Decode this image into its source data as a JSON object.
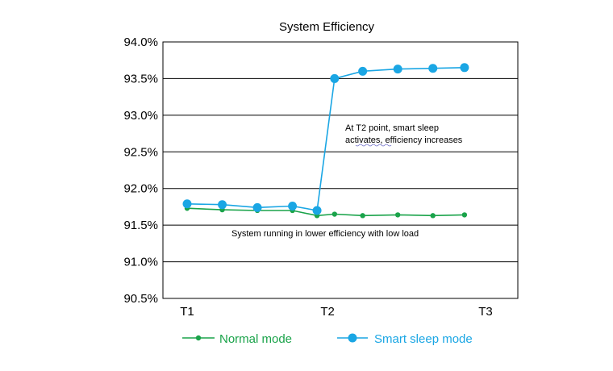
{
  "chart_data": {
    "type": "line",
    "title": "System  Efficiency",
    "xlabel": "",
    "ylabel": "",
    "ylim": [
      90.5,
      94.0
    ],
    "y_ticks": [
      "94.0%",
      "93.5%",
      "93.0%",
      "92.5%",
      "92.0%",
      "91.5%",
      "91.0%",
      "90.5%"
    ],
    "y_tick_values": [
      94.0,
      93.5,
      93.0,
      92.5,
      92.0,
      91.5,
      91.0,
      90.5
    ],
    "x_tick_labels": [
      {
        "label": "T1",
        "x": 0
      },
      {
        "label": "T2",
        "x": 4
      },
      {
        "label": "T3",
        "x": 8.5
      }
    ],
    "xlim": [
      0,
      8.5
    ],
    "grid": true,
    "legend_position": "bottom",
    "series": [
      {
        "name": "Normal mode",
        "color": "#1aa34a",
        "x": [
          0,
          1,
          2,
          3,
          3.7,
          4.2,
          5,
          6,
          7,
          7.9
        ],
        "values": [
          91.73,
          91.71,
          91.7,
          91.7,
          91.63,
          91.65,
          91.63,
          91.64,
          91.63,
          91.64
        ]
      },
      {
        "name": "Smart sleep mode",
        "color": "#1aa6e4",
        "x": [
          0,
          1,
          2,
          3,
          3.7,
          4.2,
          5,
          6,
          7,
          7.9
        ],
        "values": [
          91.79,
          91.78,
          91.74,
          91.76,
          91.7,
          93.5,
          93.6,
          93.63,
          93.64,
          93.65
        ]
      }
    ],
    "annotations": [
      {
        "text_lines": [
          "At T2 point, smart sleep",
          "activates, efficiency increases"
        ]
      },
      {
        "text_lines": [
          "System running in lower efficiency with low load"
        ]
      }
    ]
  }
}
